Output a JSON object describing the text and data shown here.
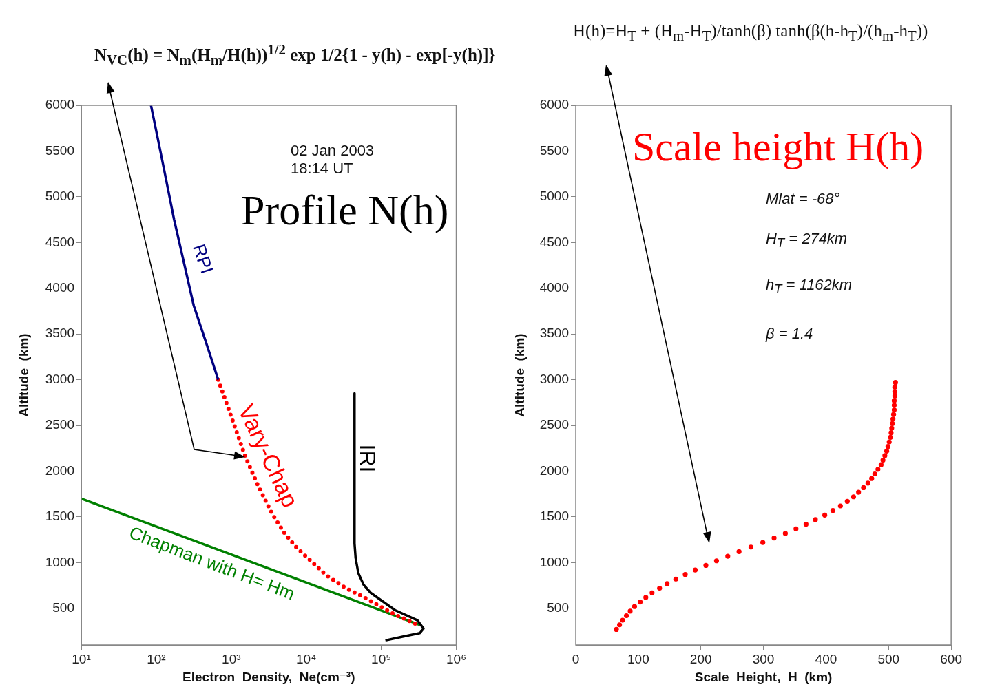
{
  "chart_data": [
    {
      "type": "line",
      "title": "Profile N(h)",
      "xlabel": "Electron  Density,  Ne(cm⁻³)",
      "ylabel": "Altitude  (km)",
      "log": "x",
      "xlim": [
        10,
        1000000
      ],
      "xticks": [
        {
          "value": 10,
          "label": "10¹"
        },
        {
          "value": 100,
          "label": "10²"
        },
        {
          "value": 1000,
          "label": "10³"
        },
        {
          "value": 10000,
          "label": "10⁴"
        },
        {
          "value": 100000,
          "label": "10⁵"
        },
        {
          "value": 1000000,
          "label": "10⁶"
        }
      ],
      "ylim": [
        100,
        6000
      ],
      "yticks": [
        500,
        1000,
        1500,
        2000,
        2500,
        3000,
        3500,
        4000,
        4500,
        5000,
        5500,
        6000
      ],
      "annotations": [
        "N$_{VC}$(h) = N$_{m}$(H$_{m}$/H(h))$^{1/2}$ exp 1/2{1 - y(h) - exp[-y(h)]}",
        "02 Jan 2003",
        "18:14 UT"
      ],
      "series": [
        {
          "name": "RPI",
          "color": "#000080",
          "x": [
            85,
            118,
            173,
            316,
            460,
            670
          ],
          "values": [
            6000,
            5430,
            4750,
            3810,
            3410,
            3000
          ]
        },
        {
          "name": "Vary-Chap",
          "color": "#ff0000",
          "line_style": "dotted",
          "x": [
            670,
            910,
            1540,
            2250,
            3530,
            5150,
            7500,
            18600,
            34000,
            53400,
            97700,
            153000,
            241000,
            327000
          ],
          "values": [
            3000,
            2690,
            2160,
            1850,
            1530,
            1320,
            1160,
            860,
            720,
            640,
            520,
            430,
            360,
            310
          ]
        },
        {
          "name": "IRI",
          "color": "#000000",
          "x": [
            44000,
            44000,
            45500,
            49500,
            58000,
            72300,
            153000,
            303000,
            366000,
            327000,
            192000,
            113500
          ],
          "values": [
            2850,
            1210,
            1050,
            885,
            760,
            670,
            480,
            370,
            280,
            230,
            190,
            150
          ]
        },
        {
          "name": "Chapman with H= Hm",
          "color": "#008000",
          "x": [
            10,
            327000
          ],
          "values": [
            1700,
            320
          ]
        }
      ]
    },
    {
      "type": "scatter",
      "title": "Scale height H(h)",
      "xlabel": "Scale  Height,  H  (km)",
      "ylabel": "Altitude  (km)",
      "marker": "circle",
      "xlim": [
        0,
        600
      ],
      "xticks": [
        0,
        100,
        200,
        300,
        400,
        500,
        600
      ],
      "ylim": [
        100,
        6000
      ],
      "yticks": [
        500,
        1000,
        1500,
        2000,
        2500,
        3000,
        3500,
        4000,
        4500,
        5000,
        5500,
        6000
      ],
      "annotations": [
        "H(h)=H$_{T}$ + (H$_{m}$-H$_{T}$)/tanh(β) tanh(β(h-h$_{T}$)/(h$_{m}$-h$_{T}$))",
        "Mlat = -68°",
        "H$_{T}$ = 274km",
        "h$_{T}$ = 1162km",
        "β  = 1.4"
      ],
      "series": [
        {
          "color": "#ff0000",
          "x": [
            65,
            70,
            75,
            81,
            87,
            94,
            103,
            112,
            122,
            134,
            146,
            160,
            175,
            191,
            208,
            225,
            243,
            261,
            280,
            299,
            317,
            335,
            352,
            368,
            383,
            398,
            411,
            423,
            434,
            444,
            452,
            460,
            467,
            473,
            478,
            483,
            488,
            491,
            494,
            497,
            499,
            501,
            503,
            504,
            505,
            506,
            507,
            508,
            509,
            509,
            509,
            510,
            510,
            510,
            511
          ],
          "values": [
            270,
            320,
            370,
            420,
            470,
            520,
            570,
            620,
            670,
            720,
            770,
            820,
            870,
            920,
            970,
            1020,
            1070,
            1120,
            1170,
            1220,
            1270,
            1320,
            1370,
            1420,
            1470,
            1520,
            1570,
            1620,
            1670,
            1720,
            1770,
            1820,
            1870,
            1920,
            1970,
            2020,
            2070,
            2120,
            2170,
            2220,
            2270,
            2320,
            2370,
            2420,
            2470,
            2520,
            2570,
            2620,
            2670,
            2720,
            2770,
            2820,
            2870,
            2920,
            2970
          ]
        }
      ]
    }
  ]
}
